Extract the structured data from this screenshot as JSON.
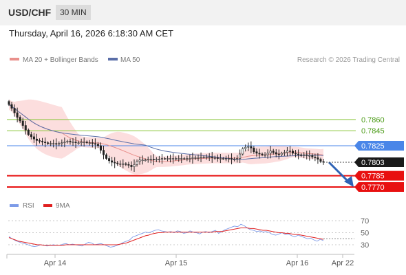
{
  "header": {
    "symbol": "USD/CHF",
    "timeframe": "30 MIN"
  },
  "datetime": "Thursday, April 16, 2026 6:18:30 AM CET",
  "legend": {
    "ma20": "MA 20 + Bollinger Bands",
    "ma50": "MA 50",
    "rsi": "RSI",
    "rsi_ma": "9MA",
    "credit": "Research © 2026 Trading Central"
  },
  "colors": {
    "green": "#8cc63f",
    "green_text": "#4a9a16",
    "blue": "#4a86e8",
    "red": "#e81010",
    "ma50": "#5a6ea8",
    "band": "#fbd3d3",
    "ma20": "#e9908c",
    "bull": "#f2f2f2",
    "bear": "#222222",
    "rsi": "#7d9be8",
    "rsi_ma": "#e02020",
    "arrow": "#2f63b5"
  },
  "chart_data": [
    {
      "type": "candlestick",
      "title": "USD/CHF 30 MIN",
      "ylim": [
        0.7764,
        0.7905
      ],
      "x_ticks": [
        "Apr 14",
        "Apr 15",
        "Apr 16",
        "Apr 22"
      ],
      "current_price": 0.7803,
      "levels": [
        {
          "value": 0.786,
          "label": "0.7860",
          "kind": "resistance"
        },
        {
          "value": 0.7845,
          "label": "0.7845",
          "kind": "resistance"
        },
        {
          "value": 0.7825,
          "label": "0.7825",
          "kind": "pivot"
        },
        {
          "value": 0.7785,
          "label": "0.7785",
          "kind": "support"
        },
        {
          "value": 0.777,
          "label": "0.7770",
          "kind": "support"
        }
      ],
      "forecast": {
        "from": 0.7803,
        "to": 0.777
      },
      "close": [
        0.788,
        0.7875,
        0.7869,
        0.7863,
        0.7858,
        0.7852,
        0.7846,
        0.784,
        0.7837,
        0.7834,
        0.7832,
        0.7831,
        0.783,
        0.7829,
        0.7828,
        0.7828,
        0.7828,
        0.7827,
        0.7828,
        0.7829,
        0.783,
        0.7831,
        0.783,
        0.783,
        0.7829,
        0.7829,
        0.783,
        0.783,
        0.7829,
        0.7829,
        0.7828,
        0.7827,
        0.7825,
        0.7819,
        0.7813,
        0.7808,
        0.7805,
        0.7803,
        0.7802,
        0.7801,
        0.7801,
        0.7801,
        0.78,
        0.7799,
        0.7797,
        0.78,
        0.7804,
        0.7806,
        0.7806,
        0.7806,
        0.7807,
        0.7807,
        0.7806,
        0.7807,
        0.7807,
        0.7808,
        0.7808,
        0.7808,
        0.7808,
        0.7808,
        0.7808,
        0.7808,
        0.7808,
        0.7808,
        0.7808,
        0.7808,
        0.7809,
        0.7809,
        0.7809,
        0.781,
        0.781,
        0.781,
        0.781,
        0.7809,
        0.7809,
        0.7808,
        0.7808,
        0.7808,
        0.7808,
        0.7808,
        0.7807,
        0.7807,
        0.7808,
        0.7814,
        0.7821,
        0.7823,
        0.7824,
        0.7822,
        0.7817,
        0.7815,
        0.7814,
        0.7813,
        0.7813,
        0.7815,
        0.7818,
        0.7816,
        0.7814,
        0.7813,
        0.7815,
        0.7816,
        0.7818,
        0.7818,
        0.7815,
        0.7814,
        0.7813,
        0.7812,
        0.7813,
        0.7812,
        0.7812,
        0.781,
        0.7809,
        0.7807,
        0.7804,
        0.7803
      ]
    },
    {
      "type": "line",
      "title": "RSI",
      "ylim": [
        20,
        80
      ],
      "y_ticks": [
        70,
        50,
        30
      ],
      "series": [
        {
          "name": "RSI",
          "values": [
            44,
            40,
            37,
            35,
            33,
            32,
            30,
            28,
            27,
            28,
            30,
            29,
            28,
            29,
            30,
            29,
            29,
            31,
            32,
            30,
            31,
            30,
            29,
            28,
            31,
            34,
            33,
            30,
            31,
            32,
            30,
            28,
            26,
            27,
            29,
            31,
            34,
            36,
            38,
            43,
            45,
            47,
            49,
            51,
            50,
            52,
            54,
            55,
            53,
            52,
            51,
            52,
            50,
            53,
            52,
            49,
            50,
            53,
            51,
            50,
            48,
            51,
            52,
            50,
            52,
            54,
            49,
            52,
            55,
            57,
            59,
            61,
            60,
            64,
            62,
            58,
            55,
            54,
            52,
            53,
            51,
            52,
            50,
            47,
            46,
            48,
            50,
            47,
            48,
            45,
            43,
            46,
            44,
            42,
            40,
            41,
            38,
            36,
            39,
            37
          ]
        },
        {
          "name": "9MA",
          "values": [
            42,
            40,
            38,
            36,
            35,
            34,
            33,
            32,
            31,
            30,
            30,
            29,
            29,
            29,
            29,
            29,
            29,
            29,
            30,
            30,
            30,
            30,
            30,
            30,
            30,
            30,
            30,
            30,
            30,
            30,
            30,
            30,
            30,
            30,
            30,
            31,
            32,
            33,
            35,
            37,
            39,
            41,
            43,
            45,
            46,
            48,
            49,
            50,
            50,
            51,
            51,
            51,
            51,
            51,
            51,
            51,
            51,
            51,
            51,
            51,
            51,
            51,
            51,
            51,
            51,
            52,
            52,
            52,
            53,
            54,
            55,
            56,
            57,
            58,
            58,
            58,
            57,
            57,
            56,
            55,
            54,
            54,
            53,
            52,
            51,
            50,
            50,
            49,
            49,
            48,
            47,
            47,
            46,
            45,
            44,
            43,
            42,
            41,
            40,
            39
          ]
        }
      ]
    }
  ]
}
